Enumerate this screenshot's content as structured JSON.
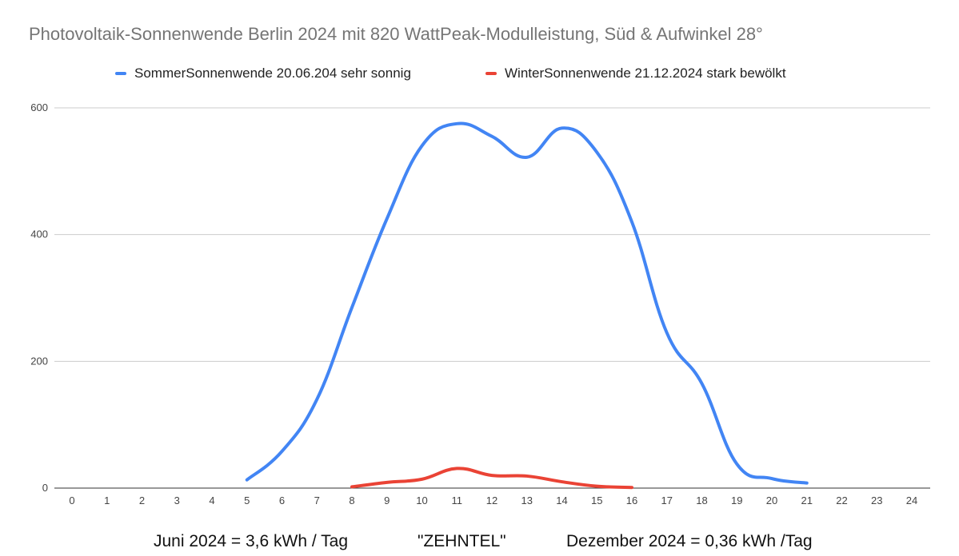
{
  "chart_data": {
    "type": "line",
    "title": "Photovoltaik-Sonnenwende Berlin 2024 mit 820 WattPeak-Modulleistung, Süd & Aufwinkel 28°",
    "xlabel": "",
    "ylabel": "",
    "xlim": [
      0,
      24
    ],
    "ylim": [
      0,
      600
    ],
    "x_ticks": [
      "0",
      "1",
      "2",
      "3",
      "4",
      "5",
      "6",
      "7",
      "8",
      "9",
      "10",
      "11",
      "12",
      "13",
      "14",
      "15",
      "16",
      "17",
      "18",
      "19",
      "20",
      "21",
      "22",
      "23",
      "24"
    ],
    "y_ticks": [
      "0",
      "200",
      "400",
      "600"
    ],
    "grid": true,
    "legend_position": "top-center",
    "series": [
      {
        "name": "SommerSonnenwende 20.06.204 sehr sonnig",
        "color": "#4285f4",
        "x": [
          5,
          6,
          7,
          8,
          9,
          10,
          11,
          12,
          13,
          14,
          15,
          16,
          17,
          18,
          19,
          20,
          21
        ],
        "y": [
          13,
          58,
          140,
          285,
          425,
          540,
          575,
          555,
          522,
          568,
          530,
          420,
          245,
          165,
          38,
          15,
          8
        ]
      },
      {
        "name": "WinterSonnenwende 21.12.2024 stark bewölkt",
        "color": "#ea4335",
        "x": [
          8,
          9,
          10,
          11,
          12,
          13,
          14,
          15,
          16
        ],
        "y": [
          2,
          9,
          14,
          31,
          20,
          19,
          10,
          3,
          1
        ]
      }
    ]
  },
  "footer": {
    "juni": "Juni 2024 = 3,6 kWh / Tag",
    "zehntel": "\"ZEHNTEL\"",
    "dezember": "Dezember 2024 = 0,36 kWh /Tag"
  }
}
